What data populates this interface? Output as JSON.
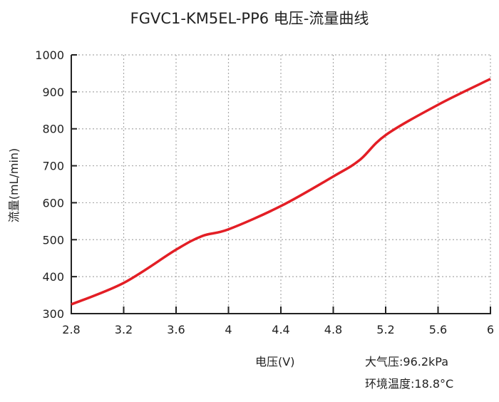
{
  "chart_data": {
    "type": "line",
    "title": "FGVC1-KM5EL-PP6 电压-流量曲线",
    "xlabel": "电压(V)",
    "ylabel": "流量(mL/min)",
    "xlim": [
      2.8,
      6
    ],
    "ylim": [
      300,
      1000
    ],
    "xticks": [
      "2.8",
      "3.2",
      "3.6",
      "4",
      "4.4",
      "4.8",
      "5.2",
      "5.6",
      "6"
    ],
    "yticks": [
      "300",
      "400",
      "500",
      "600",
      "700",
      "800",
      "900",
      "1000"
    ],
    "grid": true,
    "series": [
      {
        "name": "流量",
        "color": "#e31e25",
        "x": [
          2.8,
          3.2,
          3.6,
          3.8,
          4.0,
          4.4,
          4.8,
          5.0,
          5.2,
          5.6,
          6.0
        ],
        "y": [
          325,
          383,
          473,
          510,
          528,
          591,
          671,
          715,
          783,
          865,
          935
        ]
      }
    ]
  },
  "notes": {
    "pressure": "大气压:96.2kPa",
    "temperature": "环境温度:18.8°C"
  }
}
